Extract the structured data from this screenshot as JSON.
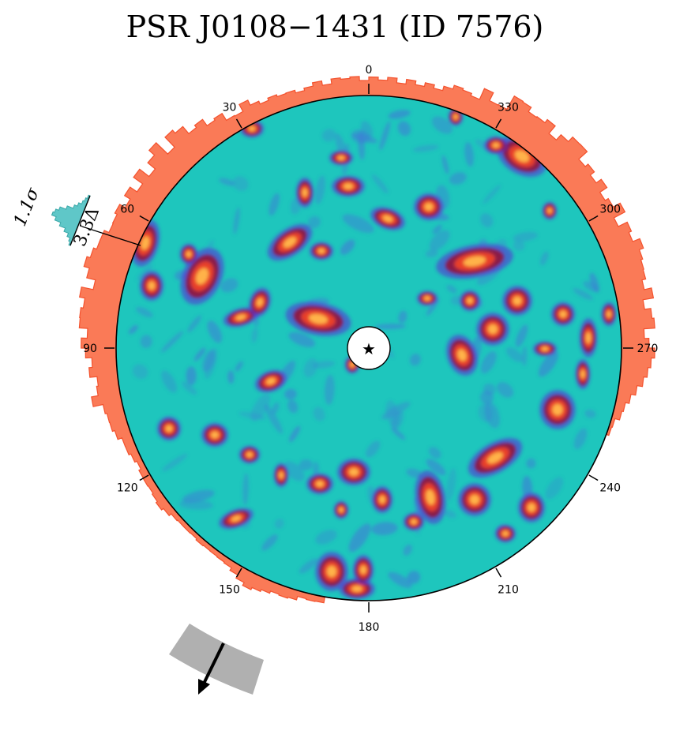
{
  "title": "PSR J0108−1431 (ID 7576)",
  "angle_ticks": [
    "0",
    "30",
    "60",
    "90",
    "120",
    "150",
    "180",
    "210",
    "240",
    "270",
    "300",
    "330"
  ],
  "histogram": {
    "sigma_label": "1.1σ",
    "delta_label": "3.3Δ"
  },
  "center_marker": "★",
  "colors": {
    "background_field": "#1ec6bd",
    "hot_spot_outer": "#8b1a47",
    "hot_spot_mid": "#e8402c",
    "hot_spot_core": "#ffb24a",
    "radial_histogram": "#fa7a57",
    "radial_histogram_edge": "#f3522e",
    "sigma_histogram": "#5fc7c8",
    "proper_motion_wedge": "#b0b0b0",
    "proper_motion_arrow": "#000000"
  },
  "icons": {
    "center": "star-icon",
    "proper_motion": "arrow-icon"
  }
}
